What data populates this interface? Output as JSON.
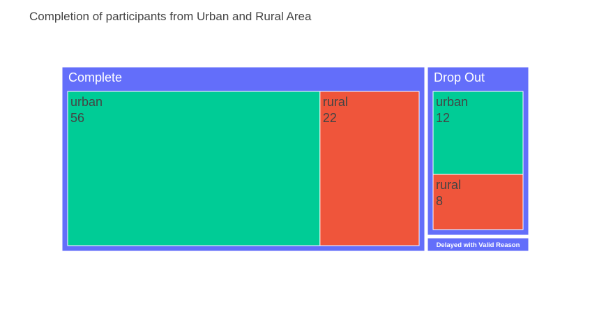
{
  "chart_data": {
    "type": "treemap",
    "title": "Completion of participants from Urban and Rural Area",
    "groups": [
      {
        "name": "Complete",
        "color": "#636EFA",
        "children": [
          {
            "name": "urban",
            "value": 56,
            "color": "#00CC96"
          },
          {
            "name": "rural",
            "value": 22,
            "color": "#EF553B"
          }
        ]
      },
      {
        "name": "Drop Out",
        "color": "#636EFA",
        "children": [
          {
            "name": "urban",
            "value": 12,
            "color": "#00CC96"
          },
          {
            "name": "rural",
            "value": 8,
            "color": "#EF553B"
          }
        ]
      },
      {
        "name": "Delayed with Valid Reason",
        "color": "#636EFA",
        "children": []
      }
    ]
  }
}
